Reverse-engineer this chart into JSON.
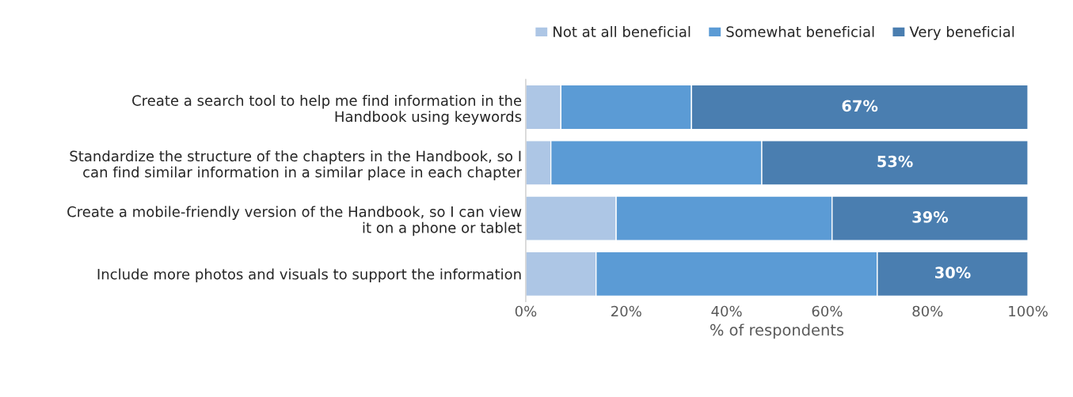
{
  "chart_data": {
    "type": "bar",
    "orientation": "horizontal",
    "stacked": true,
    "categories": [
      "Create a search tool to help me find information in the\nHandbook using keywords",
      "Standardize the structure of the chapters in the Handbook, so I\ncan find similar information in a similar place in each chapter",
      "Create a mobile-friendly version of the Handbook, so I can view\nit on a phone or tablet",
      "Include more photos and visuals to support the information"
    ],
    "series": [
      {
        "name": "Not at all beneficial",
        "color": "#adc6e5",
        "values": [
          7,
          5,
          18,
          14
        ]
      },
      {
        "name": "Somewhat beneficial",
        "color": "#5b9bd5",
        "values": [
          26,
          42,
          43,
          56
        ]
      },
      {
        "name": "Very beneficial",
        "color": "#4a7eb0",
        "values": [
          67,
          53,
          39,
          30
        ],
        "value_labels": [
          "67%",
          "53%",
          "39%",
          "30%"
        ]
      }
    ],
    "xlim": [
      0,
      100
    ],
    "xticks": [
      {
        "value": 0,
        "label": "0%"
      },
      {
        "value": 20,
        "label": "20%"
      },
      {
        "value": 40,
        "label": "40%"
      },
      {
        "value": 60,
        "label": "60%"
      },
      {
        "value": 80,
        "label": "80%"
      },
      {
        "value": 100,
        "label": "100%"
      }
    ],
    "xlabel": "% of respondents",
    "legend": "top right",
    "grid": false
  }
}
